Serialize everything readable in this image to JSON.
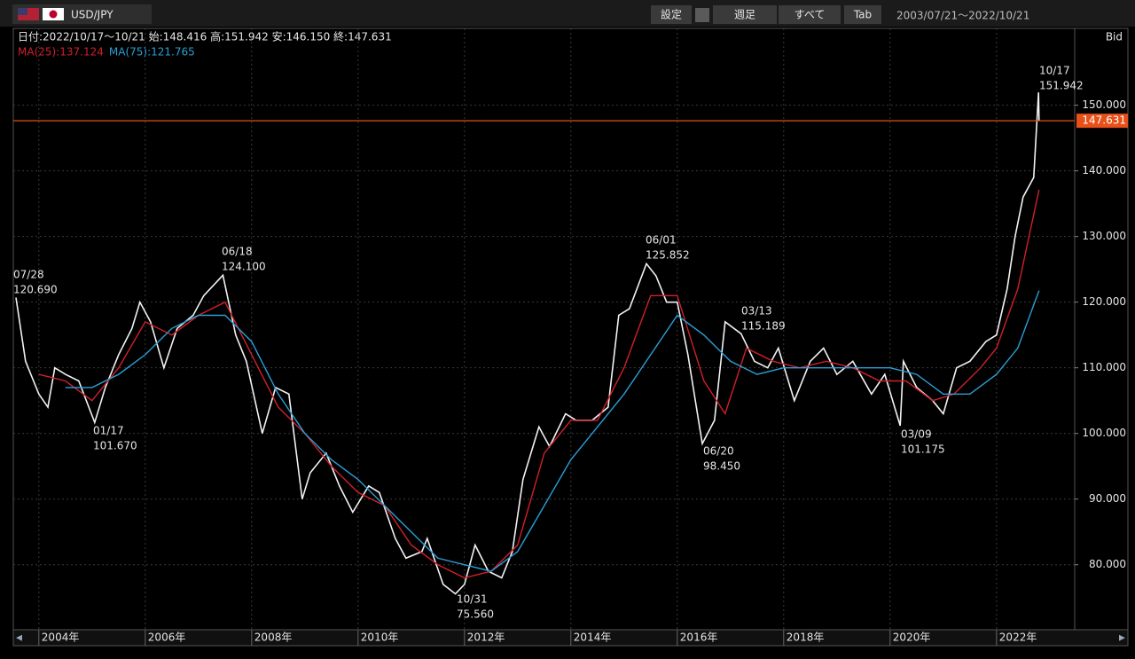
{
  "toolbar": {
    "pair": "USD/JPY",
    "buttons": [
      "設定",
      "週足",
      "すべて",
      "Tab"
    ],
    "range": "2003/07/21～2022/10/21"
  },
  "info": {
    "ohlc": "日付:2022/10/17～10/21 始:148.416 高:151.942 安:146.150 終:147.631",
    "side": "Bid"
  },
  "chart_data": {
    "type": "line",
    "xlim": [
      2003.52,
      2023.47
    ],
    "xticks": [
      {
        "value": 2004,
        "label": "2004年"
      },
      {
        "value": 2006,
        "label": "2006年"
      },
      {
        "value": 2008,
        "label": "2008年"
      },
      {
        "value": 2010,
        "label": "2010年"
      },
      {
        "value": 2012,
        "label": "2012年"
      },
      {
        "value": 2014,
        "label": "2014年"
      },
      {
        "value": 2016,
        "label": "2016年"
      },
      {
        "value": 2018,
        "label": "2018年"
      },
      {
        "value": 2020,
        "label": "2020年"
      },
      {
        "value": 2022,
        "label": "2022年"
      }
    ],
    "ylim": [
      70.1,
      161.7
    ],
    "yticks": [
      {
        "value": 80,
        "label": "80.000"
      },
      {
        "value": 90,
        "label": "90.000"
      },
      {
        "value": 100,
        "label": "100.000"
      },
      {
        "value": 110,
        "label": "110.000"
      },
      {
        "value": 120,
        "label": "120.000"
      },
      {
        "value": 130,
        "label": "130.000"
      },
      {
        "value": 140,
        "label": "140.000"
      },
      {
        "value": 150,
        "label": "150.000"
      }
    ],
    "grid": true,
    "last_price": 147.631,
    "last_price_color": "#e8501a",
    "series": [
      {
        "color": "#f2f2f2",
        "x": [
          2003.57,
          2003.75,
          2004.0,
          2004.17,
          2004.3,
          2004.5,
          2004.75,
          2005.05,
          2005.25,
          2005.5,
          2005.75,
          2005.9,
          2006.1,
          2006.35,
          2006.6,
          2006.9,
          2007.1,
          2007.46,
          2007.7,
          2007.9,
          2008.2,
          2008.45,
          2008.7,
          2008.95,
          2009.1,
          2009.4,
          2009.65,
          2009.9,
          2010.2,
          2010.4,
          2010.7,
          2010.9,
          2011.2,
          2011.3,
          2011.6,
          2011.83,
          2012.0,
          2012.2,
          2012.45,
          2012.7,
          2012.9,
          2013.1,
          2013.4,
          2013.6,
          2013.9,
          2014.1,
          2014.4,
          2014.7,
          2014.9,
          2015.1,
          2015.42,
          2015.6,
          2015.8,
          2016.0,
          2016.2,
          2016.47,
          2016.7,
          2016.9,
          2017.2,
          2017.45,
          2017.7,
          2017.9,
          2018.2,
          2018.5,
          2018.75,
          2019.0,
          2019.3,
          2019.65,
          2019.9,
          2020.19,
          2020.25,
          2020.5,
          2020.8,
          2021.0,
          2021.25,
          2021.5,
          2021.8,
          2022.0,
          2022.2,
          2022.35,
          2022.5,
          2022.7,
          2022.79,
          2022.8
        ],
        "values": [
          120.69,
          111,
          106,
          104,
          110,
          109,
          108,
          101.67,
          107,
          112,
          116,
          120,
          117,
          110,
          116,
          118,
          121,
          124.1,
          115,
          111,
          100,
          107,
          106,
          90,
          94,
          97,
          92,
          88,
          92,
          91,
          84,
          81,
          82,
          84,
          77,
          75.56,
          77,
          83,
          79,
          78,
          82,
          93,
          101,
          98,
          103,
          102,
          102,
          104,
          118,
          119,
          125.852,
          124,
          120,
          120,
          112,
          98.45,
          102,
          117,
          115.189,
          111,
          110,
          113,
          105,
          111,
          113,
          109,
          111,
          106,
          109,
          101.175,
          111,
          107,
          105,
          103,
          110,
          111,
          114,
          115,
          122,
          130,
          136,
          139,
          151.942,
          147.631
        ]
      },
      {
        "name": "MA(25):137.124",
        "color": "#d0202a",
        "x": [
          2004.0,
          2004.5,
          2005.0,
          2005.5,
          2006.0,
          2006.5,
          2007.0,
          2007.5,
          2008.0,
          2008.5,
          2009.0,
          2009.5,
          2010.0,
          2010.5,
          2011.0,
          2011.5,
          2012.0,
          2012.5,
          2013.0,
          2013.5,
          2014.0,
          2014.5,
          2015.0,
          2015.5,
          2016.0,
          2016.5,
          2016.9,
          2017.3,
          2017.8,
          2018.3,
          2018.8,
          2019.3,
          2019.8,
          2020.3,
          2020.8,
          2021.2,
          2021.7,
          2022.0,
          2022.4,
          2022.8
        ],
        "values": [
          109,
          108,
          105,
          110,
          117,
          115,
          118,
          120,
          112,
          104,
          100,
          95,
          91,
          89,
          83,
          80,
          78,
          79,
          83,
          97,
          102,
          102,
          110,
          121,
          121,
          108,
          103,
          113,
          111,
          110,
          111,
          110,
          108,
          108,
          105,
          106,
          110,
          113,
          122,
          137.124
        ]
      },
      {
        "name": "MA(75):121.765",
        "color": "#2a9fd6",
        "x": [
          2004.5,
          2005.0,
          2005.5,
          2006.0,
          2006.5,
          2007.0,
          2007.5,
          2008.0,
          2008.5,
          2009.0,
          2009.5,
          2010.0,
          2010.5,
          2011.0,
          2011.5,
          2012.0,
          2012.5,
          2013.0,
          2013.5,
          2014.0,
          2014.5,
          2015.0,
          2015.5,
          2016.0,
          2016.5,
          2017.0,
          2017.5,
          2018.0,
          2018.5,
          2019.0,
          2019.5,
          2020.0,
          2020.5,
          2021.0,
          2021.5,
          2022.0,
          2022.4,
          2022.8
        ],
        "values": [
          107,
          107,
          109,
          112,
          116,
          118,
          118,
          114,
          106,
          100,
          96,
          93,
          89,
          85,
          81,
          80,
          79,
          82,
          89,
          96,
          101,
          106,
          112,
          118,
          115,
          111,
          109,
          110,
          110,
          110,
          110,
          110,
          109,
          106,
          106,
          109,
          113,
          121.765
        ]
      }
    ],
    "annotations": [
      {
        "date": "07/28",
        "label": "120.690"
      },
      {
        "date": "06/18",
        "label": "124.100"
      },
      {
        "date": "01/17",
        "label": "101.670"
      },
      {
        "date": "10/31",
        "label": "75.560"
      },
      {
        "date": "06/01",
        "label": "125.852"
      },
      {
        "date": "06/20",
        "label": "98.450"
      },
      {
        "date": "03/13",
        "label": "115.189"
      },
      {
        "date": "03/09",
        "label": "101.175"
      },
      {
        "date": "10/17",
        "label": "151.942"
      }
    ]
  }
}
